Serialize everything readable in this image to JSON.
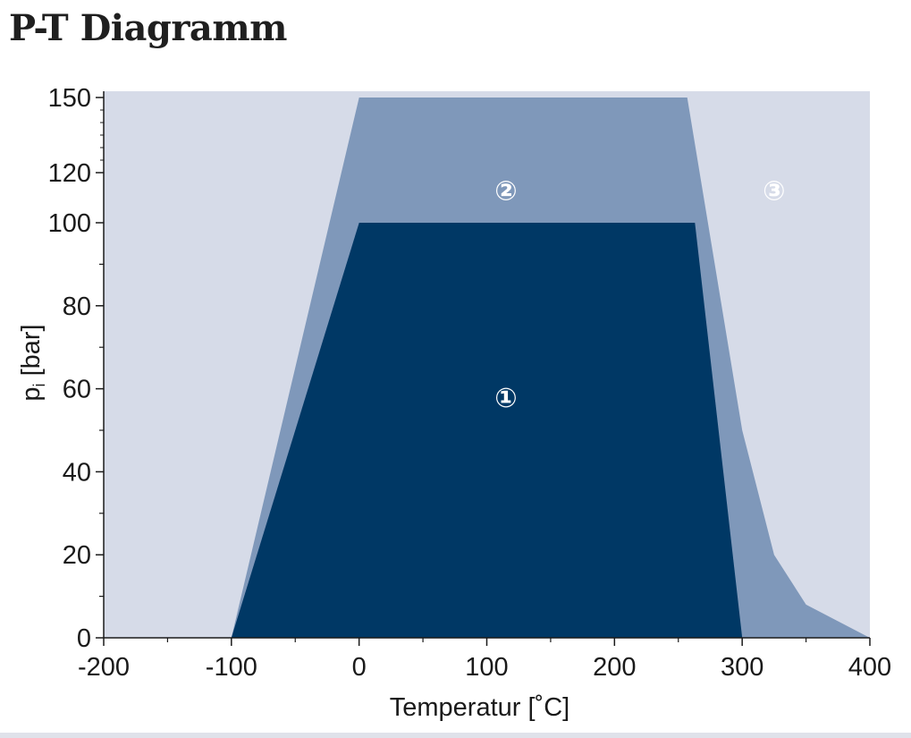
{
  "page": {
    "title": "P-T Diagramm"
  },
  "chart_data": {
    "type": "area",
    "title": "P-T Diagramm",
    "xlabel": "Temperatur [˚C]",
    "ylabel": "pi [bar]",
    "ylabel_main": "p",
    "ylabel_sub": "i",
    "ylabel_rest": " [bar]",
    "xlim": [
      -200,
      400
    ],
    "ylim": [
      0,
      150
    ],
    "y_scale": "piecewise-linear (0-100 uniform, 100-150 compressed)",
    "x_ticks": [
      {
        "value": -200,
        "label": "-200"
      },
      {
        "value": -100,
        "label": "-100"
      },
      {
        "value": 0,
        "label": "0"
      },
      {
        "value": 100,
        "label": "100"
      },
      {
        "value": 200,
        "label": "200"
      },
      {
        "value": 300,
        "label": "300"
      },
      {
        "value": 400,
        "label": "400"
      }
    ],
    "y_ticks": [
      {
        "value": 0,
        "label": "0"
      },
      {
        "value": 20,
        "label": "20"
      },
      {
        "value": 40,
        "label": "40"
      },
      {
        "value": 60,
        "label": "60"
      },
      {
        "value": 80,
        "label": "80"
      },
      {
        "value": 100,
        "label": "100"
      },
      {
        "value": 120,
        "label": "120"
      },
      {
        "value": 150,
        "label": "150"
      }
    ],
    "regions": [
      {
        "name": "③",
        "color": "#d6dbe8",
        "points": [
          [
            -200,
            0
          ],
          [
            -200,
            150
          ],
          [
            400,
            150
          ],
          [
            400,
            0
          ]
        ]
      },
      {
        "name": "②",
        "color": "#7f98ba",
        "points": [
          [
            -100,
            0
          ],
          [
            0,
            150
          ],
          [
            257,
            150
          ],
          [
            300,
            50
          ],
          [
            325,
            20
          ],
          [
            350,
            8
          ],
          [
            400,
            0
          ]
        ]
      },
      {
        "name": "①",
        "color": "#003865",
        "points": [
          [
            -100,
            0
          ],
          [
            0,
            100
          ],
          [
            263,
            100
          ],
          [
            300,
            0
          ]
        ]
      }
    ],
    "annotations": [
      {
        "text": "①",
        "x": 115,
        "y": 58
      },
      {
        "text": "②",
        "x": 115,
        "y": 113
      },
      {
        "text": "③",
        "x": 325,
        "y": 113
      }
    ],
    "grid": false,
    "legend": "none"
  }
}
